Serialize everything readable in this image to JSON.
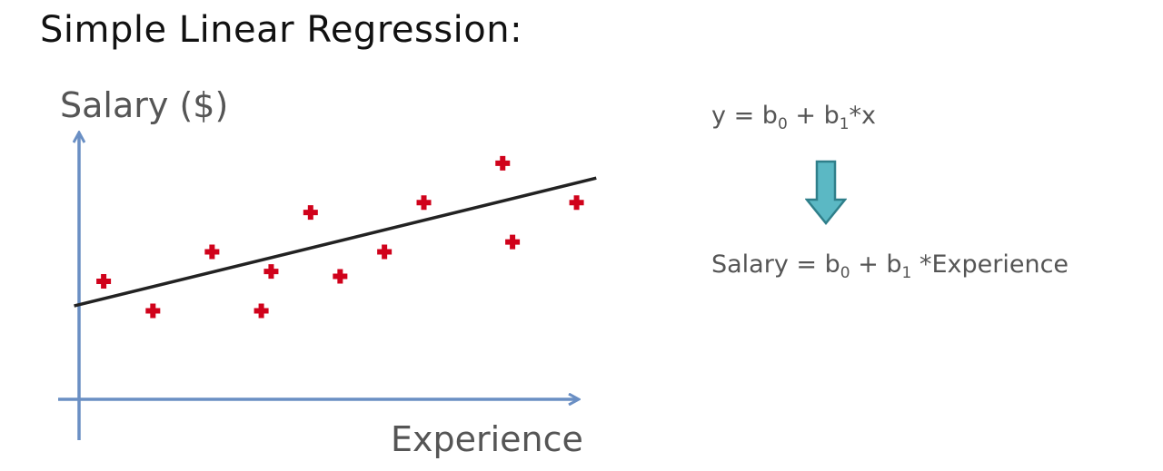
{
  "title": "Simple Linear Regression:",
  "chart_data": {
    "type": "scatter",
    "ylabel": "Salary ($)",
    "xlabel": "Experience",
    "points": [
      {
        "x": 0.5,
        "y": 2.4
      },
      {
        "x": 1.5,
        "y": 1.8
      },
      {
        "x": 2.7,
        "y": 3.0
      },
      {
        "x": 3.7,
        "y": 1.8
      },
      {
        "x": 3.9,
        "y": 2.6
      },
      {
        "x": 4.7,
        "y": 3.8
      },
      {
        "x": 5.3,
        "y": 2.5
      },
      {
        "x": 6.2,
        "y": 3.0
      },
      {
        "x": 7.0,
        "y": 4.0
      },
      {
        "x": 8.6,
        "y": 4.8
      },
      {
        "x": 8.8,
        "y": 3.2
      },
      {
        "x": 10.1,
        "y": 4.0
      }
    ],
    "regression_line": {
      "x": [
        -0.1,
        10.5
      ],
      "y": [
        1.9,
        4.5
      ]
    },
    "xlim": [
      0,
      10.2
    ],
    "ylim": [
      0,
      5.5
    ],
    "marker": "plus",
    "colors": {
      "points": "#d0021b",
      "line": "#222222",
      "axes": "#6a8fc4"
    }
  },
  "formula_general": {
    "lhs": "y",
    "eq": "=",
    "b": "b",
    "sub0": "0",
    "plus": "+",
    "sub1": "1",
    "rhs": "*x"
  },
  "formula_specific": {
    "lhs": "Salary",
    "eq": "=",
    "b": "b",
    "sub0": "0",
    "plus": "+",
    "sub1": "1",
    "rhs": "*Experience"
  },
  "arrow": {
    "icon": "down-arrow-icon",
    "color": "#5bb8c4"
  }
}
